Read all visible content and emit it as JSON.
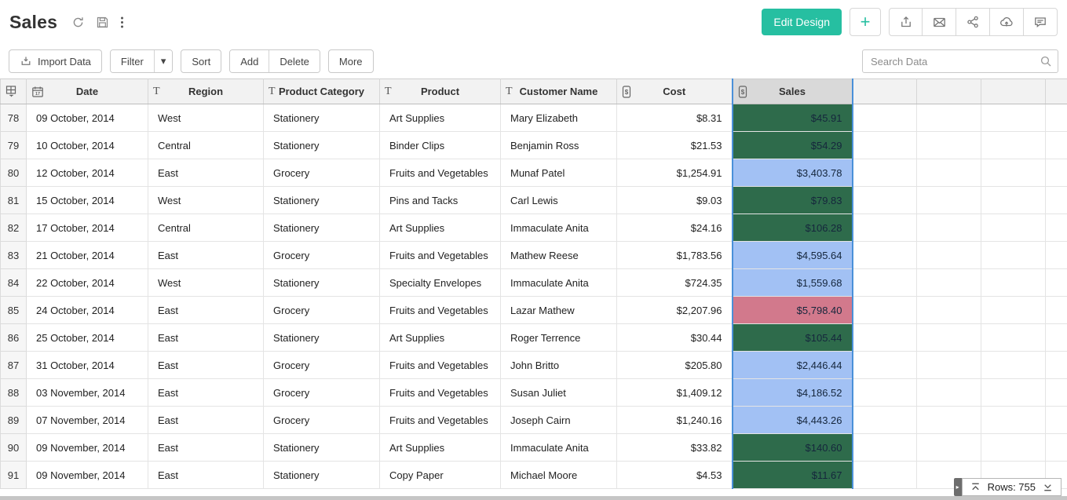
{
  "header": {
    "title": "Sales",
    "edit_design_label": "Edit Design",
    "plus_label": "+"
  },
  "toolbar": {
    "import_label": "Import Data",
    "filter_label": "Filter",
    "sort_label": "Sort",
    "add_label": "Add",
    "delete_label": "Delete",
    "more_label": "More",
    "search_placeholder": "Search Data"
  },
  "icons": [
    "refresh-icon",
    "save-icon",
    "kebab-menu-icon",
    "export-icon",
    "mail-icon",
    "share-icon",
    "cloud-upload-icon",
    "comment-icon",
    "search-icon",
    "import-icon",
    "select-all-icon",
    "calendar-icon",
    "text-type-icon",
    "currency-type-icon",
    "jump-to-top-icon",
    "jump-to-bottom-icon"
  ],
  "colors": {
    "accent": "#26BFA1",
    "sales_green": "#2E6B4B",
    "sales_blue": "#A2C1F4",
    "sales_red": "#D2798C",
    "selected_column_border": "#4A90D9"
  },
  "table": {
    "columns": [
      {
        "label": "",
        "type": "select"
      },
      {
        "label": "Date",
        "type": "date"
      },
      {
        "label": "Region",
        "type": "text"
      },
      {
        "label": "Product Category",
        "type": "text"
      },
      {
        "label": "Product",
        "type": "text"
      },
      {
        "label": "Customer Name",
        "type": "text"
      },
      {
        "label": "Cost",
        "type": "currency"
      },
      {
        "label": "Sales",
        "type": "currency",
        "selected": true
      }
    ],
    "rows": [
      {
        "num": "78",
        "date": "09 October, 2014",
        "region": "West",
        "category": "Stationery",
        "product": "Art Supplies",
        "customer": "Mary Elizabeth",
        "cost": "$8.31",
        "sales": "$45.91",
        "sales_color": "green"
      },
      {
        "num": "79",
        "date": "10 October, 2014",
        "region": "Central",
        "category": "Stationery",
        "product": "Binder Clips",
        "customer": "Benjamin Ross",
        "cost": "$21.53",
        "sales": "$54.29",
        "sales_color": "green"
      },
      {
        "num": "80",
        "date": "12 October, 2014",
        "region": "East",
        "category": "Grocery",
        "product": "Fruits and Vegetables",
        "customer": "Munaf Patel",
        "cost": "$1,254.91",
        "sales": "$3,403.78",
        "sales_color": "blue"
      },
      {
        "num": "81",
        "date": "15 October, 2014",
        "region": "West",
        "category": "Stationery",
        "product": "Pins and Tacks",
        "customer": "Carl Lewis",
        "cost": "$9.03",
        "sales": "$79.83",
        "sales_color": "green"
      },
      {
        "num": "82",
        "date": "17 October, 2014",
        "region": "Central",
        "category": "Stationery",
        "product": "Art Supplies",
        "customer": "Immaculate Anita",
        "cost": "$24.16",
        "sales": "$106.28",
        "sales_color": "green"
      },
      {
        "num": "83",
        "date": "21 October, 2014",
        "region": "East",
        "category": "Grocery",
        "product": "Fruits and Vegetables",
        "customer": "Mathew Reese",
        "cost": "$1,783.56",
        "sales": "$4,595.64",
        "sales_color": "blue"
      },
      {
        "num": "84",
        "date": "22 October, 2014",
        "region": "West",
        "category": "Stationery",
        "product": "Specialty Envelopes",
        "customer": "Immaculate Anita",
        "cost": "$724.35",
        "sales": "$1,559.68",
        "sales_color": "blue"
      },
      {
        "num": "85",
        "date": "24 October, 2014",
        "region": "East",
        "category": "Grocery",
        "product": "Fruits and Vegetables",
        "customer": "Lazar Mathew",
        "cost": "$2,207.96",
        "sales": "$5,798.40",
        "sales_color": "red"
      },
      {
        "num": "86",
        "date": "25 October, 2014",
        "region": "East",
        "category": "Stationery",
        "product": "Art Supplies",
        "customer": "Roger Terrence",
        "cost": "$30.44",
        "sales": "$105.44",
        "sales_color": "green"
      },
      {
        "num": "87",
        "date": "31 October, 2014",
        "region": "East",
        "category": "Grocery",
        "product": "Fruits and Vegetables",
        "customer": "John Britto",
        "cost": "$205.80",
        "sales": "$2,446.44",
        "sales_color": "blue"
      },
      {
        "num": "88",
        "date": "03 November, 2014",
        "region": "East",
        "category": "Grocery",
        "product": "Fruits and Vegetables",
        "customer": "Susan Juliet",
        "cost": "$1,409.12",
        "sales": "$4,186.52",
        "sales_color": "blue"
      },
      {
        "num": "89",
        "date": "07 November, 2014",
        "region": "East",
        "category": "Grocery",
        "product": "Fruits and Vegetables",
        "customer": "Joseph Cairn",
        "cost": "$1,240.16",
        "sales": "$4,443.26",
        "sales_color": "blue"
      },
      {
        "num": "90",
        "date": "09 November, 2014",
        "region": "East",
        "category": "Stationery",
        "product": "Art Supplies",
        "customer": "Immaculate Anita",
        "cost": "$33.82",
        "sales": "$140.60",
        "sales_color": "green"
      },
      {
        "num": "91",
        "date": "09 November, 2014",
        "region": "East",
        "category": "Stationery",
        "product": "Copy Paper",
        "customer": "Michael Moore",
        "cost": "$4.53",
        "sales": "$11.67",
        "sales_color": "green"
      }
    ]
  },
  "footer": {
    "rows_label": "Rows: 755"
  }
}
